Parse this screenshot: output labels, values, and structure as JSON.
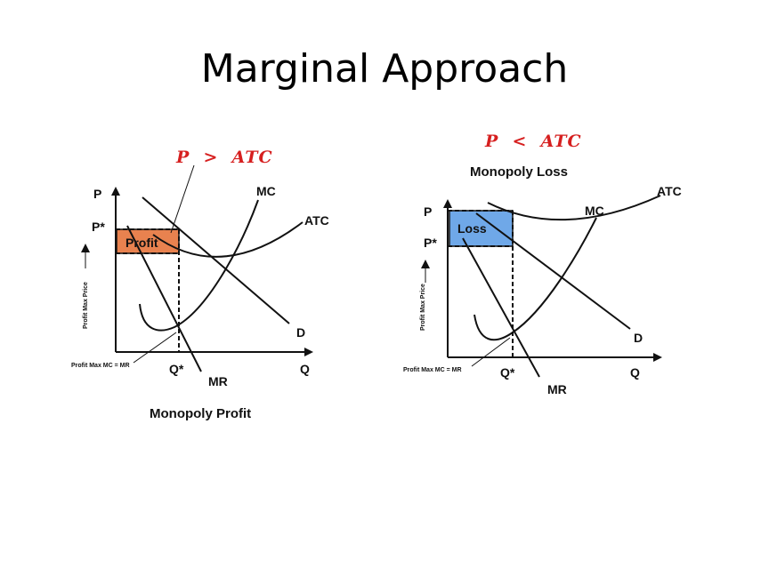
{
  "slide": {
    "title": "Marginal Approach"
  },
  "left_diagram": {
    "condition": "P  >  ATC",
    "axis_p": "P",
    "axis_q": "Q",
    "p_star": "P*",
    "q_star": "Q*",
    "mc": "MC",
    "atc": "ATC",
    "d": "D",
    "mr": "MR",
    "area_label": "Profit",
    "side_label": "Profit Max Price",
    "mc_mr_label": "Profit Max MC = MR",
    "caption": "Monopoly Profit",
    "area_color": "#e8824f"
  },
  "right_diagram": {
    "condition": "P  <  ATC",
    "heading": "Monopoly Loss",
    "axis_p": "P",
    "axis_q": "Q",
    "p_star": "P*",
    "q_star": "Q*",
    "mc": "MC",
    "atc": "ATC",
    "d": "D",
    "mr": "MR",
    "area_label": "Loss",
    "side_label": "Profit Max Price",
    "mc_mr_label": "Profit Max MC = MR",
    "area_color": "#6fa8e8"
  }
}
